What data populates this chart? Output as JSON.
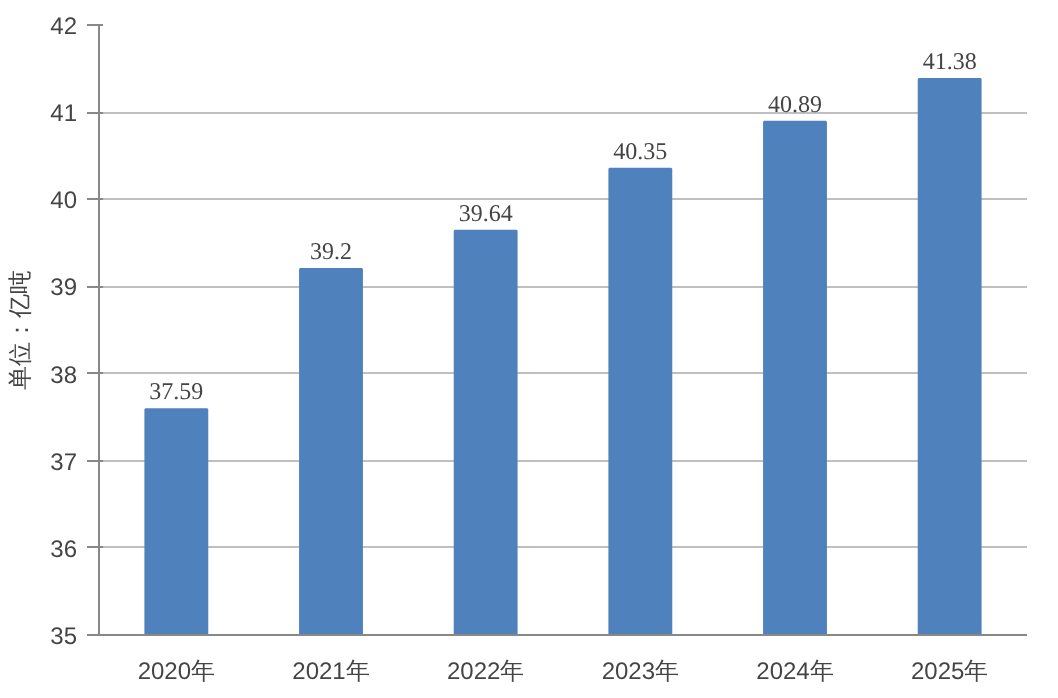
{
  "chart_data": {
    "type": "bar",
    "ylabel": "单位：亿吨",
    "categories": [
      "2020年",
      "2021年",
      "2022年",
      "2023年",
      "2024年",
      "2025年"
    ],
    "values": [
      37.59,
      39.2,
      39.64,
      40.35,
      40.89,
      41.38
    ],
    "color": "#4f81bd",
    "ylim": [
      35,
      42
    ],
    "yticks": [
      35,
      36,
      37,
      38,
      39,
      40,
      41,
      42
    ],
    "grid": "y",
    "data_labels": true
  }
}
